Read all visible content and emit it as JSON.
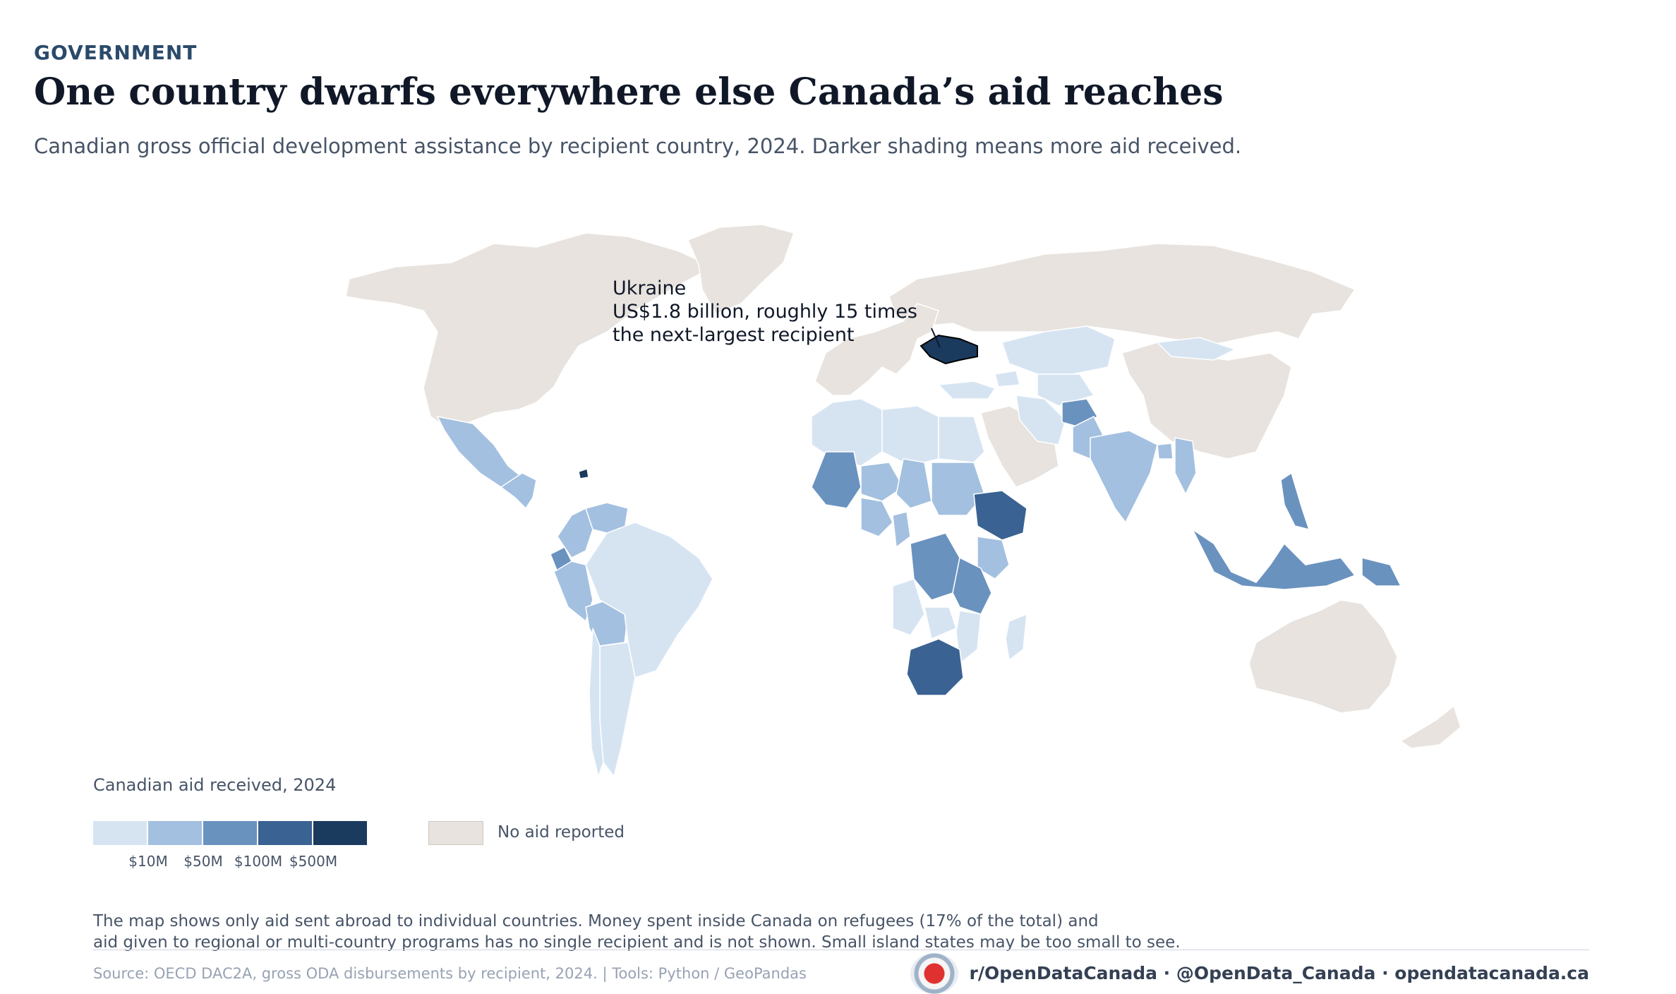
{
  "header": {
    "kicker": "GOVERNMENT",
    "title": "One country dwarfs everywhere else Canada’s aid reaches",
    "subtitle": "Canadian gross official development assistance by recipient country, 2024. Darker shading means more aid received."
  },
  "annotation": {
    "line1": "Ukraine",
    "line2": "US$1.8 billion, roughly 15 times",
    "line3": "the next-largest recipient"
  },
  "legend": {
    "title": "Canadian aid received, 2024",
    "colors": [
      "#d6e4f2",
      "#a3c0e0",
      "#6a92bf",
      "#3a6292",
      "#1a3a5e"
    ],
    "ticks": [
      "$10M",
      "$50M",
      "$100M",
      "$500M"
    ],
    "no_aid_label": "No aid reported",
    "no_aid_color": "#e8e3de"
  },
  "map": {
    "levels": {
      "ukraine": 4,
      "ethiopia": 3,
      "south-africa": 3,
      "haiti": 4,
      "drc": 2,
      "afghanistan": 2,
      "mali": 2,
      "tanzania": 2,
      "indonesia": 2,
      "ecuador": 2,
      "philippines": 2,
      "papua-new-guinea": 2,
      "bangladesh": 1,
      "colombia": 1,
      "venezuela": 1,
      "peru": 1,
      "bolivia": 1,
      "mexico": 1,
      "central-america": 1,
      "india": 1,
      "pakistan": 1,
      "sudan": 1,
      "nigeria": 1,
      "niger": 1,
      "chad": 1,
      "kenya": 1,
      "myanmar": 1,
      "cameroon": 1,
      "brazil": 0,
      "argentina": 0,
      "chile": 0,
      "kazakhstan": 0,
      "mongolia": 0,
      "algeria": 0,
      "libya": 0,
      "egypt": 0,
      "angola": 0,
      "madagascar": 0,
      "mozambique": 0,
      "iran": 0,
      "turkey": 0,
      "zambia": 0,
      "central-asia": 0,
      "caucasus": 0
    }
  },
  "notes": {
    "line1": "The map shows only aid sent abroad to individual countries. Money spent inside Canada on refugees (17% of the total) and",
    "line2": "aid given to regional or multi-country programs has no single recipient and is not shown. Small island states may be too small to see."
  },
  "footer": {
    "source": "Source: OECD DAC2A, gross ODA disbursements by recipient, 2024.  |  Tools: Python / GeoPandas",
    "social": "r/OpenDataCanada  ·  @OpenData_Canada  ·  opendatacanada.ca"
  }
}
